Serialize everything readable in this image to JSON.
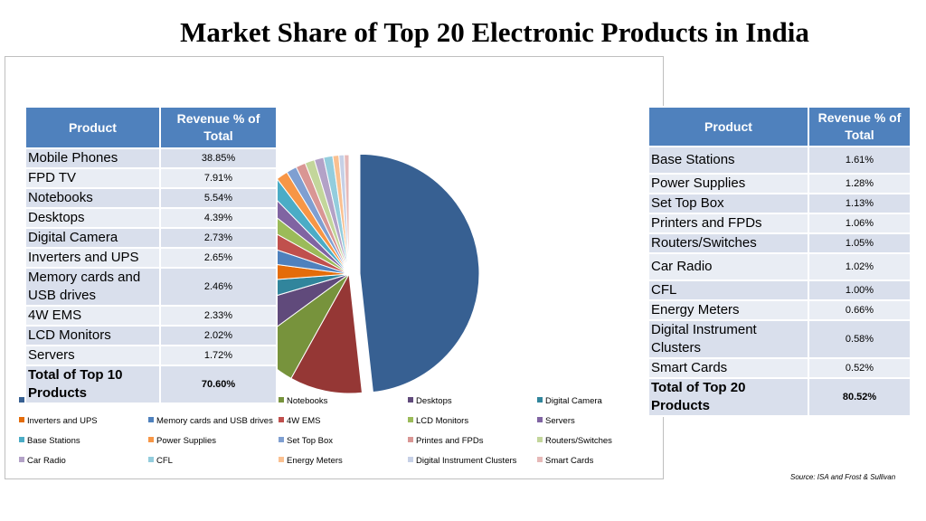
{
  "title": "Market Share of Top 20 Electronic Products in India",
  "source": "Source: ISA and Frost & Sullivan",
  "left_table": {
    "headers": [
      "Product",
      "Revenue % of Total"
    ],
    "rows": [
      {
        "product": "Mobile Phones",
        "value": "38.85%"
      },
      {
        "product": "FPD TV",
        "value": "7.91%"
      },
      {
        "product": "Notebooks",
        "value": "5.54%"
      },
      {
        "product": "Desktops",
        "value": "4.39%"
      },
      {
        "product": "Digital Camera",
        "value": "2.73%"
      },
      {
        "product": "Inverters and UPS",
        "value": "2.65%"
      },
      {
        "product": "Memory cards and USB drives",
        "value": "2.46%"
      },
      {
        "product": "4W EMS",
        "value": "2.33%"
      },
      {
        "product": "LCD Monitors",
        "value": "2.02%"
      },
      {
        "product": "Servers",
        "value": "1.72%"
      }
    ],
    "total": {
      "product": "Total of Top 10 Products",
      "value": "70.60%"
    }
  },
  "right_table": {
    "headers": [
      "Product",
      "Revenue % of Total"
    ],
    "rows": [
      {
        "product": "Base Stations",
        "value": "1.61%"
      },
      {
        "product": "Power Supplies",
        "value": "1.28%"
      },
      {
        "product": "Set Top Box",
        "value": "1.13%"
      },
      {
        "product": "Printers and FPDs",
        "value": "1.06%"
      },
      {
        "product": "Routers/Switches",
        "value": "1.05%"
      },
      {
        "product": "Car Radio",
        "value": "1.02%"
      },
      {
        "product": "CFL",
        "value": "1.00%"
      },
      {
        "product": "Energy Meters",
        "value": "0.66%"
      },
      {
        "product": "Digital Instrument Clusters",
        "value": "0.58%"
      },
      {
        "product": "Smart Cards",
        "value": "0.52%"
      }
    ],
    "total": {
      "product": "Total of Top 20 Products",
      "value": "80.52%"
    }
  },
  "chart_data": {
    "type": "pie",
    "labels": [
      "Mobile Phones",
      "FPD TV",
      "Notebooks",
      "Desktops",
      "Digital Camera",
      "Inverters and UPS",
      "Memory cards and USB drives",
      "4W EMS",
      "LCD Monitors",
      "Servers",
      "Base Stations",
      "Power Supplies",
      "Set Top Box",
      "Printes and FPDs",
      "Routers/Switches",
      "Car Radio",
      "CFL",
      "Energy Meters",
      "Digital Instrument Clusters",
      "Smart Cards"
    ],
    "values": [
      38.85,
      7.91,
      5.54,
      4.39,
      2.73,
      2.65,
      2.46,
      2.33,
      2.02,
      1.72,
      1.61,
      1.28,
      1.13,
      1.06,
      1.05,
      1.02,
      1.0,
      0.66,
      0.58,
      0.52
    ],
    "colors": [
      "#376092",
      "#953735",
      "#77933c",
      "#604a7b",
      "#31859c",
      "#e46c0a",
      "#4f81bd",
      "#c0504d",
      "#9bbb59",
      "#8064a2",
      "#4bacc6",
      "#f79646",
      "#7f9fd1",
      "#d99694",
      "#c3d69b",
      "#b3a2c7",
      "#93cddd",
      "#fac090",
      "#c6d0e6",
      "#e6b9b8"
    ],
    "exploded": "Mobile Phones",
    "legend_position": "bottom",
    "legend": [
      "Mobile Phones",
      "FPD TV",
      "Notebooks",
      "Desktops",
      "Digital Camera",
      "Inverters and UPS",
      "Memory cards and USB drives",
      "4W EMS",
      "LCD Monitors",
      "Servers",
      "Base Stations",
      "Power Supplies",
      "Set Top Box",
      "Printes and FPDs",
      "Routers/Switches",
      "Car Radio",
      "CFL",
      "Energy Meters",
      "Digital Instrument Clusters",
      "Smart Cards"
    ]
  }
}
